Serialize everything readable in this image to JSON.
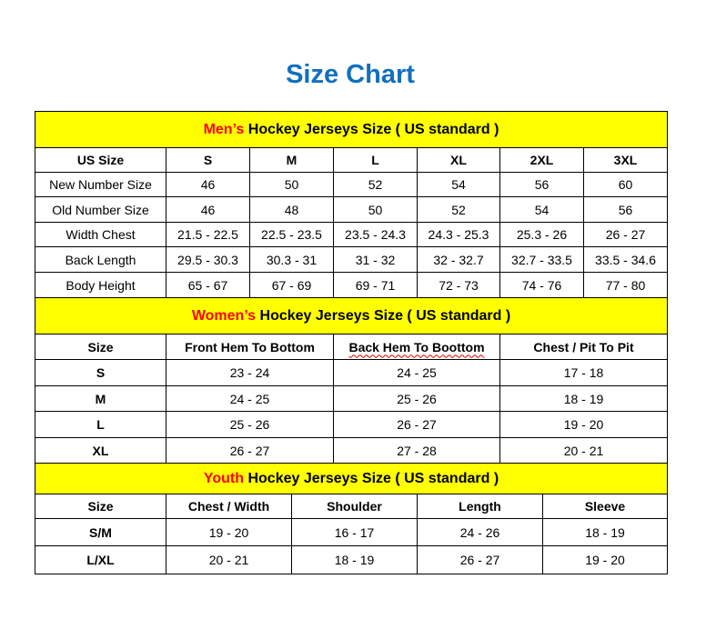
{
  "title": "Size Chart",
  "colors": {
    "title": "#1170c0",
    "section_bg": "#ffff00",
    "highlight": "#ff0000"
  },
  "men": {
    "heading_highlight": "Men’s",
    "heading_rest": " Hockey Jerseys Size ( US standard )",
    "header": [
      "US Size",
      "S",
      "M",
      "L",
      "XL",
      "2XL",
      "3XL"
    ],
    "rows": [
      [
        "New Number Size",
        "46",
        "50",
        "52",
        "54",
        "56",
        "60"
      ],
      [
        "Old Number Size",
        "46",
        "48",
        "50",
        "52",
        "54",
        "56"
      ],
      [
        "Width Chest",
        "21.5 - 22.5",
        "22.5 - 23.5",
        "23.5 - 24.3",
        "24.3 - 25.3",
        "25.3 - 26",
        "26 - 27"
      ],
      [
        "Back Length",
        "29.5 - 30.3",
        "30.3 - 31",
        "31 - 32",
        "32 - 32.7",
        "32.7 - 33.5",
        "33.5 - 34.6"
      ],
      [
        "Body Height",
        "65 - 67",
        "67 - 69",
        "69 - 71",
        "72 - 73",
        "74 - 76",
        "77 - 80"
      ]
    ]
  },
  "women": {
    "heading_highlight": "Women’s",
    "heading_rest": " Hockey Jerseys Size ( US standard )",
    "header": [
      "Size",
      "Front Hem To Bottom",
      "Back Hem To Boottom",
      "Chest / Pit To Pit"
    ],
    "rows": [
      [
        "S",
        "23 - 24",
        "24 - 25",
        "17 - 18"
      ],
      [
        "M",
        "24 - 25",
        "25 - 26",
        "18 - 19"
      ],
      [
        "L",
        "25 - 26",
        "26 - 27",
        "19 - 20"
      ],
      [
        "XL",
        "26 - 27",
        "27 - 28",
        "20 - 21"
      ]
    ]
  },
  "youth": {
    "heading_highlight": "Youth",
    "heading_rest": " Hockey Jerseys Size ( US standard )",
    "header": [
      "Size",
      "Chest / Width",
      "Shoulder",
      "Length",
      "Sleeve"
    ],
    "rows": [
      [
        "S/M",
        "19 - 20",
        "16 - 17",
        "24 - 26",
        "18 - 19"
      ],
      [
        "L/XL",
        "20 - 21",
        "18 - 19",
        "26 - 27",
        "19 - 20"
      ]
    ]
  }
}
